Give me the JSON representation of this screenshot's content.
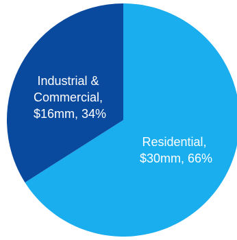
{
  "chart_data": {
    "type": "pie",
    "slices": [
      {
        "name": "Residential",
        "value": 30,
        "percent": 66,
        "label_lines": [
          "Residential,",
          "$30mm, 66%"
        ],
        "color": "#1aaeee"
      },
      {
        "name": "Industrial & Commercial",
        "value": 16,
        "percent": 34,
        "label_lines": [
          "Industrial &",
          "Commercial,",
          "$16mm, 34%"
        ],
        "color": "#0a4a9e"
      }
    ],
    "start": "12 o'clock",
    "direction": "clockwise"
  }
}
